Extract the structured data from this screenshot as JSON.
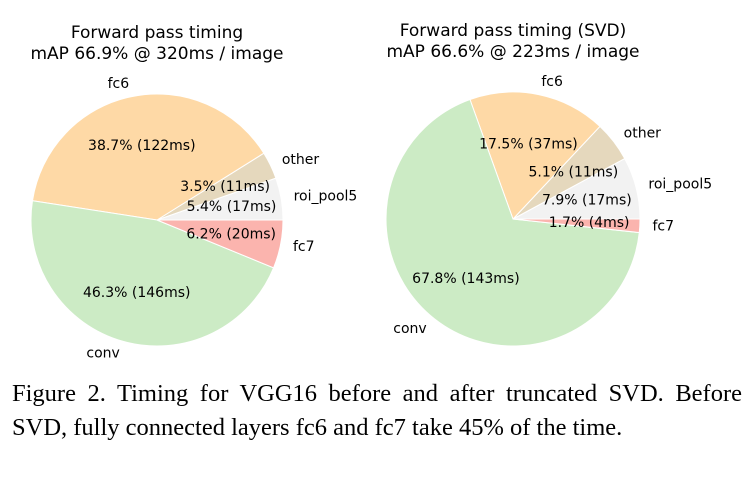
{
  "chart_data": [
    {
      "type": "pie",
      "title": "Forward pass timing",
      "subtitle": "mAP 66.9% @ 320ms / image",
      "start_angle_deg": 0,
      "direction": "counterclockwise",
      "slices": [
        {
          "label": "roi_pool5",
          "percent": 5.4,
          "ms": 17,
          "pct_text": "5.4% (17ms)",
          "color": "#f2f2f2"
        },
        {
          "label": "other",
          "percent": 3.5,
          "ms": 11,
          "pct_text": "3.5% (11ms)",
          "color": "#e5d8bd"
        },
        {
          "label": "fc6",
          "percent": 38.7,
          "ms": 122,
          "pct_text": "38.7% (122ms)",
          "color": "#fed9a6"
        },
        {
          "label": "conv",
          "percent": 46.3,
          "ms": 146,
          "pct_text": "46.3% (146ms)",
          "color": "#ccebc5"
        },
        {
          "label": "fc7",
          "percent": 6.2,
          "ms": 20,
          "pct_text": "6.2% (20ms)",
          "color": "#fbb4ae"
        }
      ]
    },
    {
      "type": "pie",
      "title": "Forward pass timing (SVD)",
      "subtitle": "mAP 66.6% @ 223ms / image",
      "start_angle_deg": 0,
      "direction": "counterclockwise",
      "slices": [
        {
          "label": "roi_pool5",
          "percent": 7.9,
          "ms": 17,
          "pct_text": "7.9% (17ms)",
          "color": "#f2f2f2"
        },
        {
          "label": "other",
          "percent": 5.1,
          "ms": 11,
          "pct_text": "5.1% (11ms)",
          "color": "#e5d8bd"
        },
        {
          "label": "fc6",
          "percent": 17.5,
          "ms": 37,
          "pct_text": "17.5% (37ms)",
          "color": "#fed9a6"
        },
        {
          "label": "conv",
          "percent": 67.8,
          "ms": 143,
          "pct_text": "67.8% (143ms)",
          "color": "#ccebc5"
        },
        {
          "label": "fc7",
          "percent": 1.7,
          "ms": 4,
          "pct_text": "1.7% (4ms)",
          "color": "#fbb4ae"
        }
      ]
    }
  ],
  "caption": "Figure 2. Timing for VGG16 before and after truncated SVD. Before SVD, fully connected layers fc6 and fc7 take 45% of the time."
}
